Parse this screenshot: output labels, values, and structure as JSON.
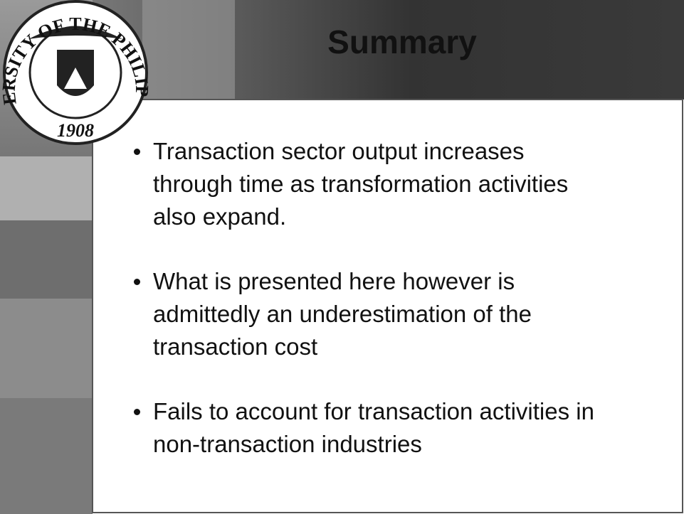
{
  "title": "Summary",
  "seal": {
    "name": "UNIVERSITY OF THE PHILIPPINES",
    "year": "1908"
  },
  "bullets": [
    [
      "Transaction sector output increases",
      "through time as transformation activities",
      "also expand."
    ],
    [
      "What is presented here however is",
      "admittedly an underestimation of the",
      "transaction cost"
    ],
    [
      "Fails to account for transaction activities in",
      "non-transaction industries"
    ]
  ]
}
